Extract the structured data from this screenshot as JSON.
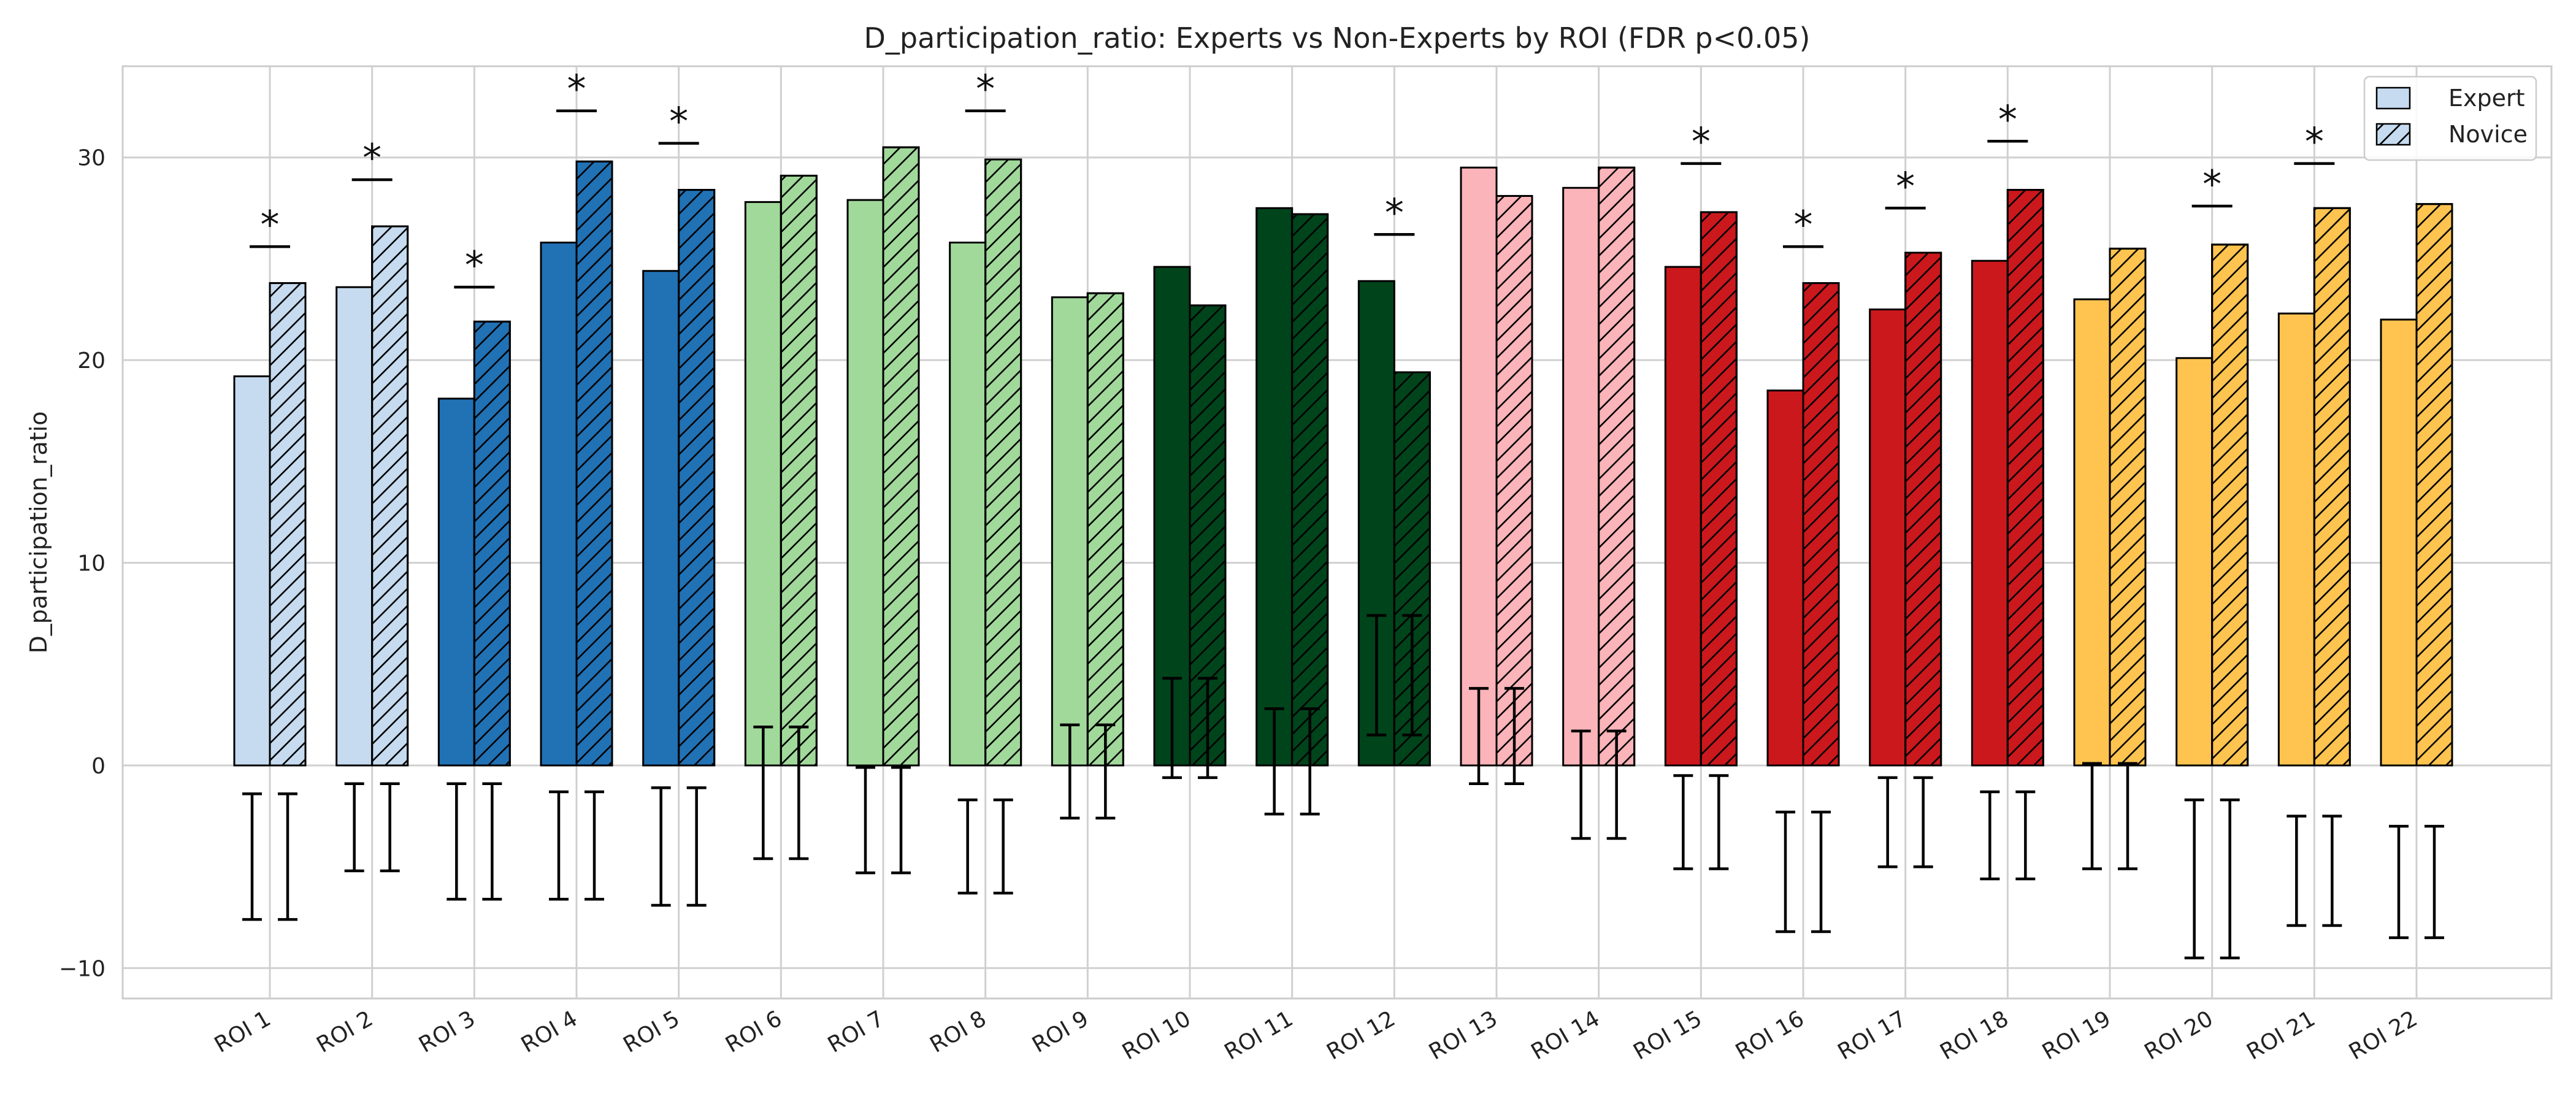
{
  "chart_data": {
    "type": "bar",
    "title": "D_participation_ratio: Experts vs Non-Experts by ROI (FDR p<0.05)",
    "xlabel": "",
    "ylabel": "D_participation_ratio",
    "ylim": [
      -11.5,
      34.5
    ],
    "yticks": [
      -10,
      0,
      10,
      20,
      30
    ],
    "grid": true,
    "legend_position": "top-right",
    "categories": [
      "ROI 1",
      "ROI 2",
      "ROI 3",
      "ROI 4",
      "ROI 5",
      "ROI 6",
      "ROI 7",
      "ROI 8",
      "ROI 9",
      "ROI 10",
      "ROI 11",
      "ROI 12",
      "ROI 13",
      "ROI 14",
      "ROI 15",
      "ROI 16",
      "ROI 17",
      "ROI 18",
      "ROI 19",
      "ROI 20",
      "ROI 21",
      "ROI 22"
    ],
    "colors": [
      "#c6dbef",
      "#c6dbef",
      "#2171b5",
      "#2171b5",
      "#2171b5",
      "#a1d99b",
      "#a1d99b",
      "#a1d99b",
      "#a1d99b",
      "#00441b",
      "#00441b",
      "#00441b",
      "#fbb4b9",
      "#fbb4b9",
      "#cb181d",
      "#cb181d",
      "#cb181d",
      "#cb181d",
      "#fec44f",
      "#fec44f",
      "#fec44f",
      "#fec44f"
    ],
    "series": [
      {
        "name": "Expert",
        "hatch": false,
        "values": [
          19.2,
          23.6,
          18.1,
          25.8,
          24.4,
          27.8,
          27.9,
          25.8,
          23.1,
          24.6,
          27.5,
          23.9,
          29.5,
          28.5,
          24.6,
          18.5,
          22.5,
          24.9,
          23.0,
          20.1,
          22.3,
          22.0
        ]
      },
      {
        "name": "Novice",
        "hatch": true,
        "values": [
          23.8,
          26.6,
          21.9,
          29.8,
          28.4,
          29.1,
          30.5,
          29.9,
          23.3,
          22.7,
          27.2,
          19.4,
          28.1,
          29.5,
          27.3,
          23.8,
          25.3,
          28.4,
          25.5,
          25.7,
          27.5,
          27.7
        ]
      }
    ],
    "error_bars": [
      [
        -7.6,
        -1.4
      ],
      [
        -5.2,
        -0.9
      ],
      [
        -6.6,
        -0.9
      ],
      [
        -6.6,
        -1.3
      ],
      [
        -6.9,
        -1.1
      ],
      [
        -4.6,
        1.9
      ],
      [
        -5.3,
        -0.1
      ],
      [
        -6.3,
        -1.7
      ],
      [
        -2.6,
        2.0
      ],
      [
        -0.6,
        4.3
      ],
      [
        -2.4,
        2.8
      ],
      [
        1.5,
        7.4
      ],
      [
        -0.9,
        3.8
      ],
      [
        -3.6,
        1.7
      ],
      [
        -5.1,
        -0.5
      ],
      [
        -8.2,
        -2.3
      ],
      [
        -5.0,
        -0.6
      ],
      [
        -5.6,
        -1.3
      ],
      [
        -5.1,
        0.1
      ],
      [
        -9.5,
        -1.7
      ],
      [
        -7.9,
        -2.5
      ],
      [
        -8.5,
        -3.0
      ]
    ],
    "significance": [
      {
        "roi": "ROI 1",
        "line_y": 25.6
      },
      {
        "roi": "ROI 2",
        "line_y": 28.9
      },
      {
        "roi": "ROI 3",
        "line_y": 23.6
      },
      {
        "roi": "ROI 4",
        "line_y": 32.3
      },
      {
        "roi": "ROI 5",
        "line_y": 30.7
      },
      {
        "roi": "ROI 8",
        "line_y": 32.3
      },
      {
        "roi": "ROI 12",
        "line_y": 26.2
      },
      {
        "roi": "ROI 15",
        "line_y": 29.7
      },
      {
        "roi": "ROI 16",
        "line_y": 25.6
      },
      {
        "roi": "ROI 17",
        "line_y": 27.5
      },
      {
        "roi": "ROI 18",
        "line_y": 30.8
      },
      {
        "roi": "ROI 20",
        "line_y": 27.6
      },
      {
        "roi": "ROI 21",
        "line_y": 29.7
      }
    ],
    "significance_marker": "*",
    "legend": [
      "Expert",
      "Novice"
    ]
  }
}
